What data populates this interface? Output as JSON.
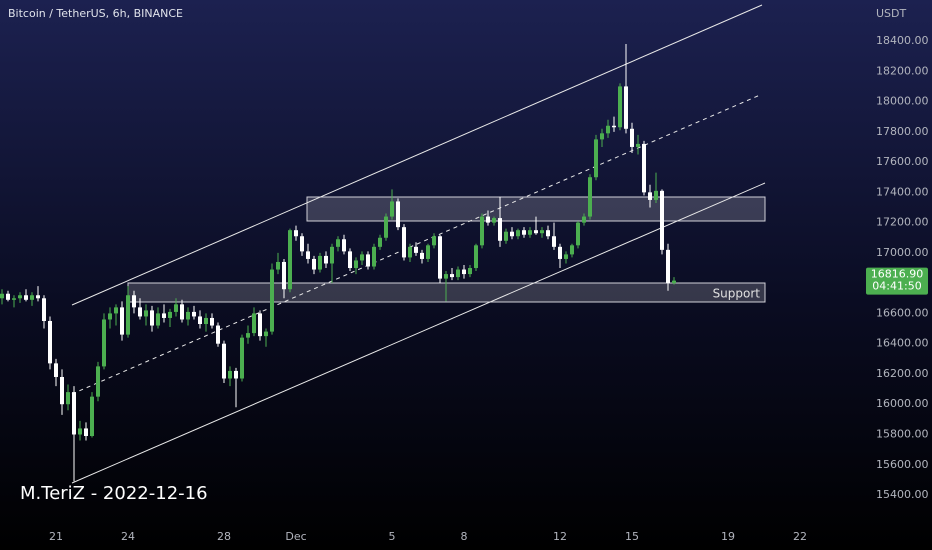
{
  "chart_data": {
    "type": "candlestick",
    "title": "Bitcoin / TetherUS, 6h, BINANCE",
    "y_axis_label": "USDT",
    "watermark": "M.TeriZ - 2022-12-16",
    "annotations": [
      "Support"
    ],
    "up_color": "#4caf50",
    "down_color": "#ffffff",
    "ylim": [
      15235,
      18671
    ],
    "yticks": [
      {
        "value": 15400,
        "label": "15400.00"
      },
      {
        "value": 15600,
        "label": "15600.00"
      },
      {
        "value": 15800,
        "label": "15800.00"
      },
      {
        "value": 16000,
        "label": "16000.00"
      },
      {
        "value": 16200,
        "label": "16200.00"
      },
      {
        "value": 16400,
        "label": "16400.00"
      },
      {
        "value": 16600,
        "label": "16600.00"
      },
      {
        "value": 17000,
        "label": "17000.00"
      },
      {
        "value": 17200,
        "label": "17200.00"
      },
      {
        "value": 17400,
        "label": "17400.00"
      },
      {
        "value": 17600,
        "label": "17600.00"
      },
      {
        "value": 17800,
        "label": "17800.00"
      },
      {
        "value": 18000,
        "label": "18000.00"
      },
      {
        "value": 18200,
        "label": "18200.00"
      },
      {
        "value": 18400,
        "label": "18400.00"
      }
    ],
    "xticks": [
      {
        "value": 9,
        "label": "21"
      },
      {
        "value": 21,
        "label": "24"
      },
      {
        "value": 37,
        "label": "28"
      },
      {
        "value": 49,
        "label": "Dec"
      },
      {
        "value": 65,
        "label": "5"
      },
      {
        "value": 77,
        "label": "8"
      },
      {
        "value": 93,
        "label": "12"
      },
      {
        "value": 105,
        "label": "15"
      },
      {
        "value": 121,
        "label": "19"
      },
      {
        "value": 133,
        "label": "22"
      }
    ],
    "price_label": {
      "value": 16816.9,
      "label": "16816.90"
    },
    "countdown": "04:41:50",
    "candles": [
      [
        16700,
        16760,
        16660,
        16730
      ],
      [
        16730,
        16750,
        16680,
        16690
      ],
      [
        16690,
        16720,
        16640,
        16700
      ],
      [
        16700,
        16740,
        16670,
        16720
      ],
      [
        16720,
        16760,
        16680,
        16690
      ],
      [
        16690,
        16740,
        16650,
        16720
      ],
      [
        16720,
        16780,
        16680,
        16700
      ],
      [
        16700,
        16720,
        16500,
        16550
      ],
      [
        16550,
        16580,
        16230,
        16270
      ],
      [
        16270,
        16300,
        16120,
        16180
      ],
      [
        16180,
        16230,
        15930,
        16000
      ],
      [
        16000,
        16130,
        15960,
        16080
      ],
      [
        16080,
        16120,
        15490,
        15800
      ],
      [
        15800,
        15890,
        15760,
        15840
      ],
      [
        15840,
        15880,
        15760,
        15790
      ],
      [
        15790,
        16080,
        15780,
        16050
      ],
      [
        16050,
        16280,
        16020,
        16250
      ],
      [
        16250,
        16600,
        16230,
        16560
      ],
      [
        16560,
        16640,
        16500,
        16600
      ],
      [
        16600,
        16660,
        16520,
        16640
      ],
      [
        16640,
        16680,
        16420,
        16460
      ],
      [
        16460,
        16780,
        16440,
        16720
      ],
      [
        16720,
        16750,
        16600,
        16640
      ],
      [
        16640,
        16700,
        16560,
        16580
      ],
      [
        16580,
        16660,
        16520,
        16620
      ],
      [
        16620,
        16650,
        16480,
        16520
      ],
      [
        16520,
        16640,
        16500,
        16600
      ],
      [
        16600,
        16660,
        16540,
        16570
      ],
      [
        16570,
        16630,
        16510,
        16610
      ],
      [
        16610,
        16700,
        16580,
        16660
      ],
      [
        16660,
        16690,
        16540,
        16560
      ],
      [
        16560,
        16640,
        16520,
        16610
      ],
      [
        16610,
        16650,
        16560,
        16580
      ],
      [
        16580,
        16620,
        16500,
        16530
      ],
      [
        16530,
        16600,
        16480,
        16570
      ],
      [
        16570,
        16600,
        16500,
        16520
      ],
      [
        16520,
        16540,
        16380,
        16400
      ],
      [
        16400,
        16420,
        16140,
        16170
      ],
      [
        16170,
        16250,
        16120,
        16220
      ],
      [
        16220,
        16240,
        15980,
        16170
      ],
      [
        16170,
        16460,
        16150,
        16440
      ],
      [
        16440,
        16520,
        16400,
        16470
      ],
      [
        16470,
        16640,
        16450,
        16600
      ],
      [
        16600,
        16620,
        16420,
        16450
      ],
      [
        16450,
        16500,
        16380,
        16480
      ],
      [
        16480,
        16930,
        16460,
        16890
      ],
      [
        16890,
        17000,
        16860,
        16940
      ],
      [
        16940,
        16960,
        16700,
        16760
      ],
      [
        16760,
        17160,
        16740,
        17150
      ],
      [
        17150,
        17180,
        17080,
        17110
      ],
      [
        17110,
        17130,
        16980,
        17010
      ],
      [
        17010,
        17060,
        16930,
        16960
      ],
      [
        16960,
        16980,
        16860,
        16890
      ],
      [
        16890,
        17000,
        16870,
        16980
      ],
      [
        16980,
        17010,
        16900,
        16930
      ],
      [
        16930,
        17060,
        16800,
        17040
      ],
      [
        17040,
        17110,
        17010,
        17090
      ],
      [
        17090,
        17120,
        16990,
        17010
      ],
      [
        17010,
        17030,
        16880,
        16900
      ],
      [
        16900,
        16970,
        16860,
        16950
      ],
      [
        16950,
        17010,
        16920,
        16990
      ],
      [
        16990,
        17010,
        16890,
        16910
      ],
      [
        16910,
        17060,
        16890,
        17040
      ],
      [
        17040,
        17120,
        17020,
        17100
      ],
      [
        17100,
        17260,
        17080,
        17240
      ],
      [
        17240,
        17420,
        17220,
        17340
      ],
      [
        17340,
        17360,
        17150,
        17170
      ],
      [
        17170,
        17190,
        16950,
        16970
      ],
      [
        16970,
        17060,
        16940,
        17040
      ],
      [
        17040,
        17070,
        16980,
        17000
      ],
      [
        17000,
        17020,
        16930,
        16960
      ],
      [
        16960,
        17060,
        16940,
        17050
      ],
      [
        17050,
        17130,
        17030,
        17110
      ],
      [
        17110,
        17120,
        16800,
        16830
      ],
      [
        16830,
        16880,
        16680,
        16860
      ],
      [
        16860,
        16900,
        16820,
        16840
      ],
      [
        16840,
        16910,
        16820,
        16890
      ],
      [
        16890,
        16920,
        16830,
        16860
      ],
      [
        16860,
        16920,
        16840,
        16900
      ],
      [
        16900,
        17060,
        16880,
        17050
      ],
      [
        17050,
        17260,
        17030,
        17240
      ],
      [
        17240,
        17280,
        17180,
        17200
      ],
      [
        17200,
        17240,
        17180,
        17230
      ],
      [
        17230,
        17370,
        17040,
        17080
      ],
      [
        17080,
        17160,
        17060,
        17140
      ],
      [
        17140,
        17170,
        17090,
        17110
      ],
      [
        17110,
        17160,
        17090,
        17150
      ],
      [
        17150,
        17170,
        17100,
        17120
      ],
      [
        17120,
        17170,
        17100,
        17150
      ],
      [
        17150,
        17240,
        17120,
        17130
      ],
      [
        17130,
        17170,
        17100,
        17150
      ],
      [
        17150,
        17180,
        17090,
        17110
      ],
      [
        17110,
        17200,
        17020,
        17040
      ],
      [
        17040,
        17060,
        16900,
        16960
      ],
      [
        16960,
        17010,
        16930,
        16990
      ],
      [
        16990,
        17060,
        16970,
        17050
      ],
      [
        17050,
        17210,
        17030,
        17200
      ],
      [
        17200,
        17260,
        17180,
        17240
      ],
      [
        17240,
        17520,
        17220,
        17500
      ],
      [
        17500,
        17780,
        17480,
        17750
      ],
      [
        17750,
        17820,
        17700,
        17790
      ],
      [
        17790,
        17880,
        17760,
        17840
      ],
      [
        17840,
        17900,
        17800,
        17830
      ],
      [
        17830,
        18120,
        17810,
        18100
      ],
      [
        18100,
        18380,
        17790,
        17820
      ],
      [
        17820,
        17860,
        17660,
        17700
      ],
      [
        17700,
        17780,
        17650,
        17720
      ],
      [
        17720,
        17740,
        17380,
        17400
      ],
      [
        17400,
        17450,
        17300,
        17350
      ],
      [
        17350,
        17530,
        17330,
        17410
      ],
      [
        17410,
        17420,
        16990,
        17020
      ],
      [
        17020,
        17060,
        16750,
        16800
      ],
      [
        16800,
        16840,
        16790,
        16816.9
      ]
    ]
  }
}
